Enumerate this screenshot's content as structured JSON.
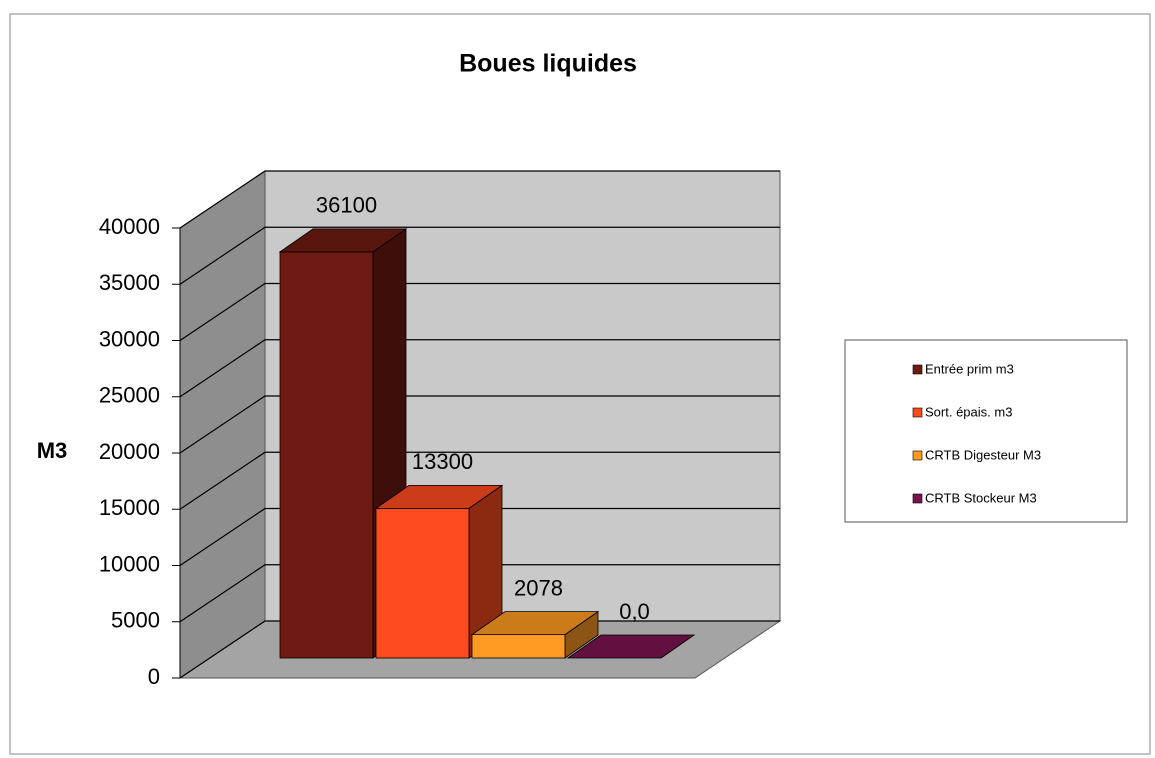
{
  "chart_data": {
    "type": "bar3d",
    "title": "Boues liquides",
    "ylabel": "M3",
    "ylim": [
      0,
      40000
    ],
    "yticks": [
      0,
      5000,
      10000,
      15000,
      20000,
      25000,
      30000,
      35000,
      40000
    ],
    "grid": true,
    "legend": "right",
    "series": [
      {
        "name": "Entrée prim m3",
        "color": "#6e1a12",
        "values": [
          36100
        ]
      },
      {
        "name": "Sort. épais. m3",
        "color": "#ff4b1e",
        "values": [
          13300
        ]
      },
      {
        "name": "CRTB Digesteur M3",
        "color": "#ff9a22",
        "values": [
          2078
        ]
      },
      {
        "name": "CRTB Stockeur M3",
        "color": "#7a1450",
        "values": [
          0
        ],
        "value_labels": [
          "0,0"
        ]
      }
    ]
  }
}
